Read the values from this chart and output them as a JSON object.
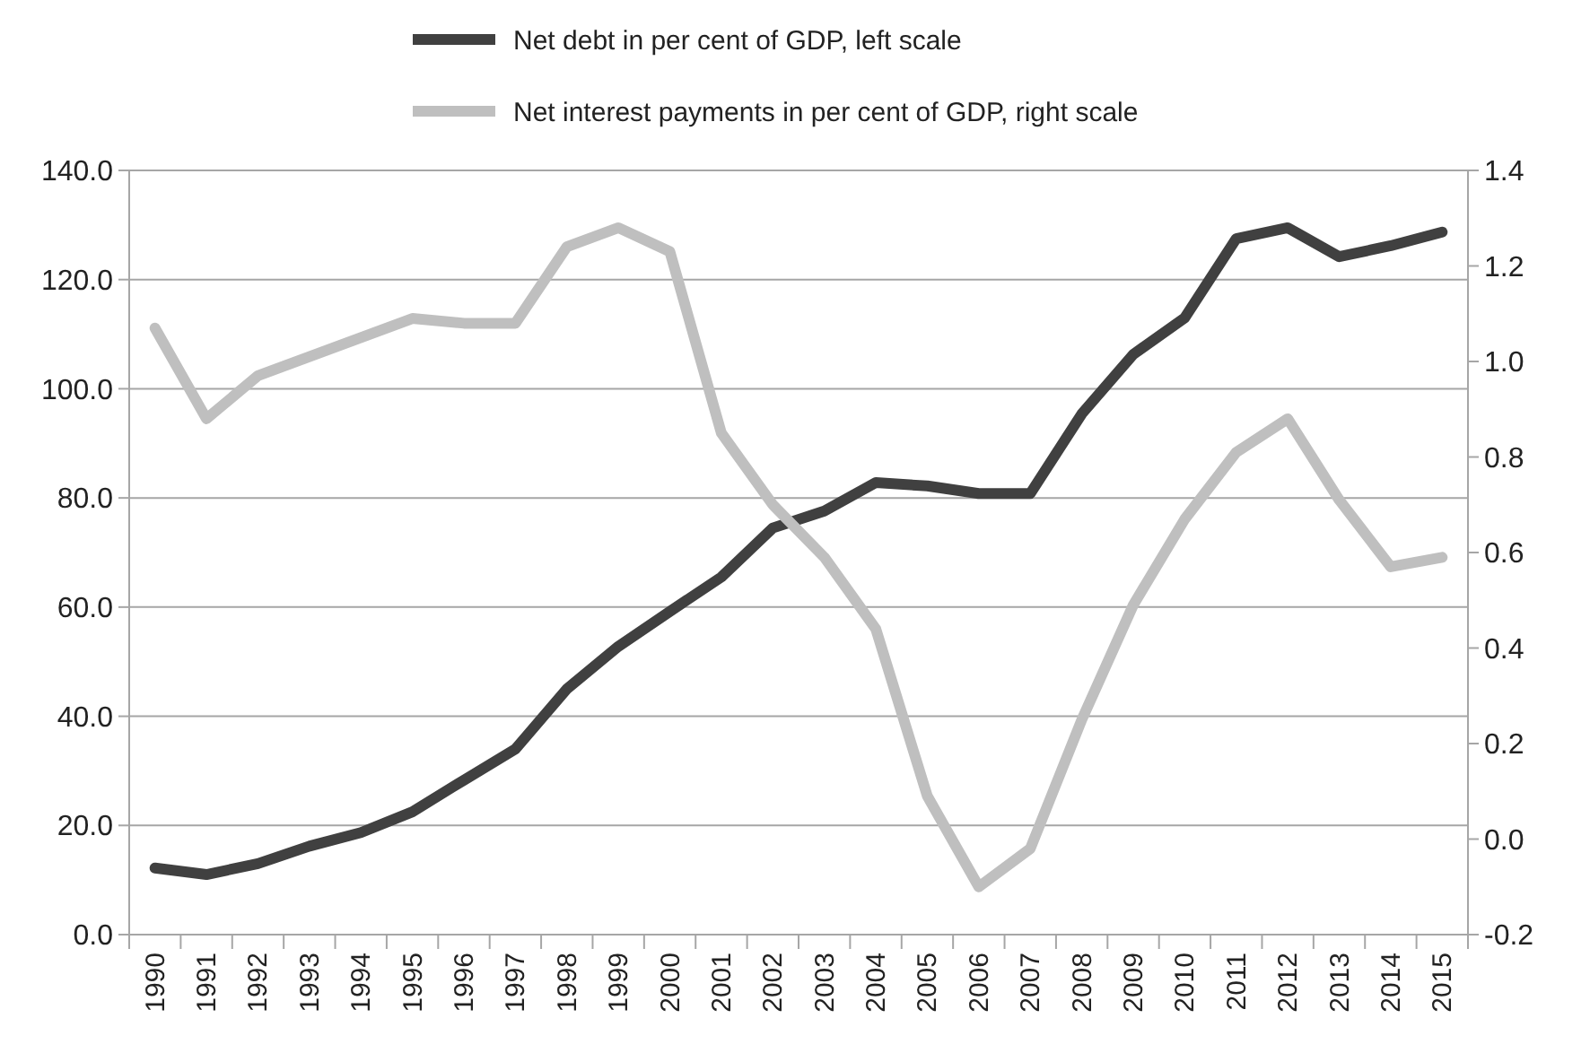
{
  "chart_data": {
    "type": "line",
    "categories": [
      "1990",
      "1991",
      "1992",
      "1993",
      "1994",
      "1995",
      "1996",
      "1997",
      "1998",
      "1999",
      "2000",
      "2001",
      "2002",
      "2003",
      "2004",
      "2005",
      "2006",
      "2007",
      "2008",
      "2009",
      "2010",
      "2011",
      "2012",
      "2013",
      "2014",
      "2015"
    ],
    "series": [
      {
        "name": "Net debt in per cent of GDP, left scale",
        "color": "#404040",
        "values": [
          12.2,
          11.0,
          13.0,
          16.2,
          18.7,
          22.5,
          28.3,
          34.0,
          45.0,
          52.8,
          59.2,
          65.5,
          74.5,
          77.6,
          82.8,
          82.2,
          80.8,
          80.8,
          95.4,
          106.3,
          113.0,
          127.5,
          129.5,
          124.2,
          126.2,
          128.7
        ]
      },
      {
        "name": "Net interest payments in per cent of GDP, right scale",
        "color": "#bfbfbf",
        "axis": "y2",
        "values": [
          1.07,
          0.88,
          0.97,
          1.01,
          1.05,
          1.09,
          1.08,
          1.08,
          1.24,
          1.28,
          1.23,
          0.85,
          0.7,
          0.59,
          0.44,
          0.09,
          -0.1,
          -0.02,
          0.25,
          0.49,
          0.67,
          0.81,
          0.88,
          0.71,
          0.57,
          0.59
        ]
      }
    ],
    "ylim": [
      0,
      140
    ],
    "yticks": [
      {
        "value": 0,
        "label": "0.0"
      },
      {
        "value": 20,
        "label": "20.0"
      },
      {
        "value": 40,
        "label": "40.0"
      },
      {
        "value": 60,
        "label": "60.0"
      },
      {
        "value": 80,
        "label": "80.0"
      },
      {
        "value": 100,
        "label": "100.0"
      },
      {
        "value": 120,
        "label": "120.0"
      },
      {
        "value": 140,
        "label": "140.0"
      }
    ],
    "y2lim": [
      -0.2,
      1.4
    ],
    "y2ticks": [
      -0.2,
      {
        "value": 0,
        "label": "0.0"
      },
      0.2,
      0.4,
      0.6,
      0.8,
      {
        "value": 1,
        "label": "1.0"
      },
      1.2,
      1.4
    ],
    "grid": "y",
    "legend": "top",
    "line_style": "solid",
    "marker": "none"
  }
}
